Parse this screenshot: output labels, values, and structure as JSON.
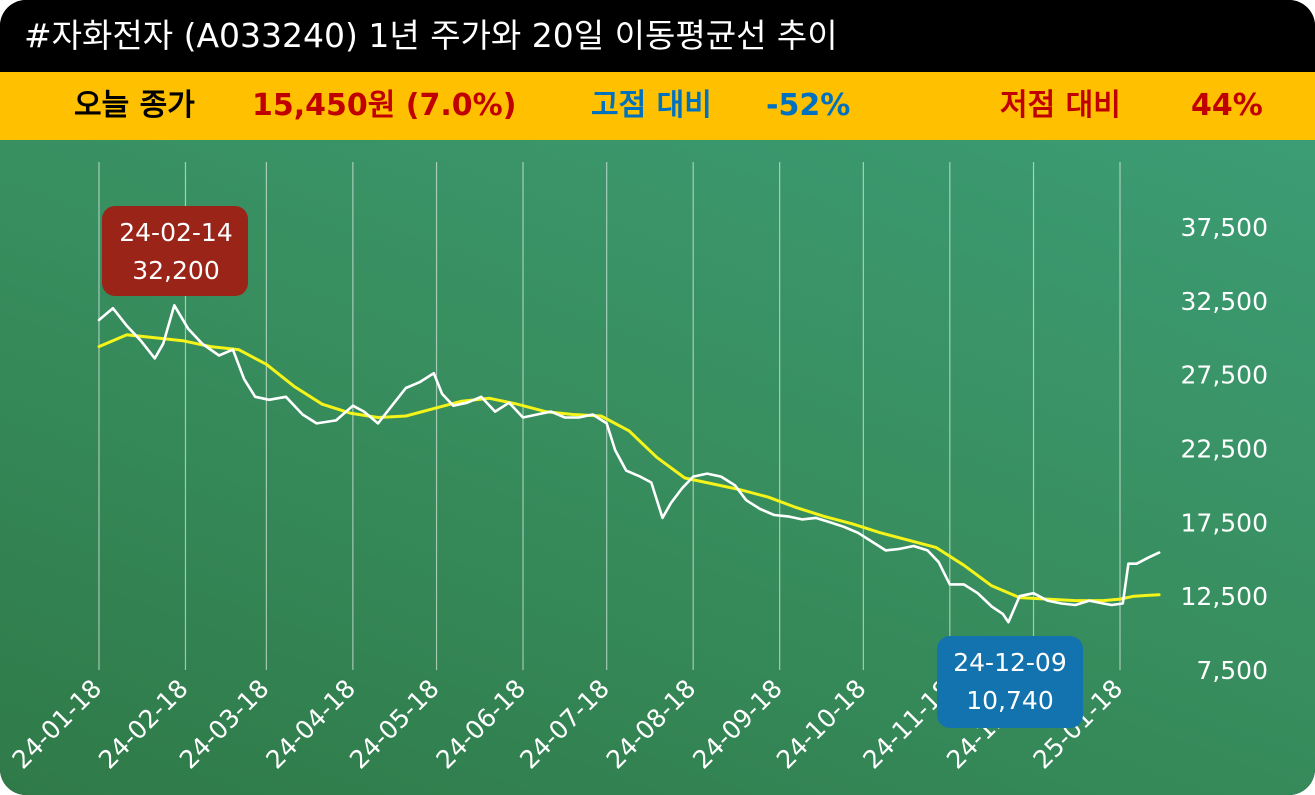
{
  "title": "#자화전자 (A033240) 1년 주가와 20일 이동평균선 추이",
  "stats": {
    "close_label": "오늘 종가",
    "close_value": "15,450원 (7.0%)",
    "high_label": "고점 대비",
    "high_value": "-52%",
    "low_label": "저점 대비",
    "low_value": "44%"
  },
  "colors": {
    "price_line": "#ffffff",
    "ma_line": "#f4f41a",
    "high_box": "#9b2418",
    "low_box": "#1373ae",
    "stat_bar": "#ffc000",
    "close_text": "#c00000",
    "high_text": "#0070c0",
    "low_text": "#c00000"
  },
  "annotations": {
    "high": {
      "date": "24-02-14",
      "value": "32,200"
    },
    "low": {
      "date": "24-12-09",
      "value": "10,740"
    }
  },
  "chart_data": {
    "type": "line",
    "title": "",
    "xlabel": "",
    "ylabel": "",
    "ylim": [
      7500,
      37500
    ],
    "yticks": [
      7500,
      12500,
      17500,
      22500,
      27500,
      32500,
      37500
    ],
    "ytick_labels": [
      "7,500",
      "12,500",
      "17,500",
      "22,500",
      "27,500",
      "32,500",
      "37,500"
    ],
    "xticks": [
      "24-01-18",
      "24-02-18",
      "24-03-18",
      "24-04-18",
      "24-05-18",
      "24-06-18",
      "24-07-18",
      "24-08-18",
      "24-09-18",
      "24-10-18",
      "24-11-18",
      "24-12-18",
      "25-01-18"
    ],
    "grid": "vertical",
    "series": [
      {
        "name": "",
        "color": "#ffffff",
        "points": [
          [
            "24-01-18",
            31200
          ],
          [
            "24-01-23",
            32000
          ],
          [
            "24-01-28",
            30800
          ],
          [
            "24-02-02",
            29800
          ],
          [
            "24-02-07",
            28600
          ],
          [
            "24-02-10",
            29600
          ],
          [
            "24-02-14",
            32200
          ],
          [
            "24-02-19",
            30600
          ],
          [
            "24-02-24",
            29600
          ],
          [
            "24-03-01",
            28800
          ],
          [
            "24-03-06",
            29200
          ],
          [
            "24-03-10",
            27200
          ],
          [
            "24-03-14",
            26000
          ],
          [
            "24-03-19",
            25800
          ],
          [
            "24-03-25",
            26000
          ],
          [
            "24-03-31",
            24800
          ],
          [
            "24-04-05",
            24200
          ],
          [
            "24-04-12",
            24400
          ],
          [
            "24-04-18",
            25400
          ],
          [
            "24-04-22",
            25000
          ],
          [
            "24-04-27",
            24200
          ],
          [
            "24-05-02",
            25400
          ],
          [
            "24-05-07",
            26600
          ],
          [
            "24-05-12",
            27000
          ],
          [
            "24-05-17",
            27600
          ],
          [
            "24-05-20",
            26200
          ],
          [
            "24-05-24",
            25400
          ],
          [
            "24-05-29",
            25600
          ],
          [
            "24-06-03",
            26000
          ],
          [
            "24-06-08",
            25000
          ],
          [
            "24-06-13",
            25600
          ],
          [
            "24-06-18",
            24600
          ],
          [
            "24-06-23",
            24800
          ],
          [
            "24-06-28",
            25000
          ],
          [
            "24-07-03",
            24600
          ],
          [
            "24-07-08",
            24600
          ],
          [
            "24-07-13",
            24800
          ],
          [
            "24-07-18",
            24200
          ],
          [
            "24-07-21",
            22400
          ],
          [
            "24-07-25",
            21000
          ],
          [
            "24-07-30",
            20600
          ],
          [
            "24-08-03",
            20200
          ],
          [
            "24-08-07",
            17800
          ],
          [
            "24-08-10",
            18800
          ],
          [
            "24-08-14",
            19800
          ],
          [
            "24-08-18",
            20600
          ],
          [
            "24-08-23",
            20800
          ],
          [
            "24-08-28",
            20600
          ],
          [
            "24-09-02",
            20000
          ],
          [
            "24-09-06",
            19000
          ],
          [
            "24-09-11",
            18400
          ],
          [
            "24-09-16",
            18000
          ],
          [
            "24-09-21",
            17900
          ],
          [
            "24-09-26",
            17700
          ],
          [
            "24-10-01",
            17800
          ],
          [
            "24-10-06",
            17500
          ],
          [
            "24-10-11",
            17200
          ],
          [
            "24-10-16",
            16800
          ],
          [
            "24-10-21",
            16200
          ],
          [
            "24-10-26",
            15600
          ],
          [
            "24-10-31",
            15700
          ],
          [
            "24-11-05",
            15900
          ],
          [
            "24-11-10",
            15600
          ],
          [
            "24-11-14",
            14800
          ],
          [
            "24-11-18",
            13300
          ],
          [
            "24-11-23",
            13300
          ],
          [
            "24-11-28",
            12700
          ],
          [
            "24-12-03",
            11800
          ],
          [
            "24-12-07",
            11300
          ],
          [
            "24-12-09",
            10740
          ],
          [
            "24-12-13",
            12500
          ],
          [
            "24-12-18",
            12700
          ],
          [
            "24-12-23",
            12200
          ],
          [
            "24-12-28",
            12000
          ],
          [
            "25-01-02",
            11900
          ],
          [
            "25-01-07",
            12200
          ],
          [
            "25-01-12",
            12000
          ],
          [
            "25-01-15",
            11900
          ],
          [
            "25-01-19",
            12000
          ],
          [
            "25-01-21",
            14700
          ],
          [
            "25-01-24",
            14700
          ],
          [
            "25-01-28",
            15100
          ],
          [
            "25-02-01",
            15450
          ]
        ]
      },
      {
        "name": "",
        "color": "#f4f41a",
        "points": [
          [
            "24-01-18",
            29400
          ],
          [
            "24-01-28",
            30200
          ],
          [
            "24-02-07",
            30000
          ],
          [
            "24-02-17",
            29800
          ],
          [
            "24-02-27",
            29400
          ],
          [
            "24-03-08",
            29200
          ],
          [
            "24-03-18",
            28200
          ],
          [
            "24-03-28",
            26700
          ],
          [
            "24-04-07",
            25500
          ],
          [
            "24-04-17",
            24900
          ],
          [
            "24-04-27",
            24600
          ],
          [
            "24-05-07",
            24700
          ],
          [
            "24-05-17",
            25200
          ],
          [
            "24-05-27",
            25700
          ],
          [
            "24-06-06",
            25900
          ],
          [
            "24-06-16",
            25500
          ],
          [
            "24-06-26",
            25000
          ],
          [
            "24-07-06",
            24800
          ],
          [
            "24-07-16",
            24700
          ],
          [
            "24-07-26",
            23700
          ],
          [
            "24-08-05",
            21900
          ],
          [
            "24-08-15",
            20500
          ],
          [
            "24-08-25",
            20100
          ],
          [
            "24-09-04",
            19700
          ],
          [
            "24-09-14",
            19200
          ],
          [
            "24-09-24",
            18500
          ],
          [
            "24-10-04",
            17900
          ],
          [
            "24-10-14",
            17400
          ],
          [
            "24-10-24",
            16800
          ],
          [
            "24-11-03",
            16300
          ],
          [
            "24-11-13",
            15800
          ],
          [
            "24-11-23",
            14600
          ],
          [
            "24-12-03",
            13200
          ],
          [
            "24-12-13",
            12400
          ],
          [
            "24-12-23",
            12300
          ],
          [
            "25-01-02",
            12200
          ],
          [
            "25-01-12",
            12200
          ],
          [
            "25-01-18",
            12300
          ],
          [
            "25-01-23",
            12500
          ],
          [
            "25-02-01",
            12600
          ]
        ]
      }
    ]
  }
}
